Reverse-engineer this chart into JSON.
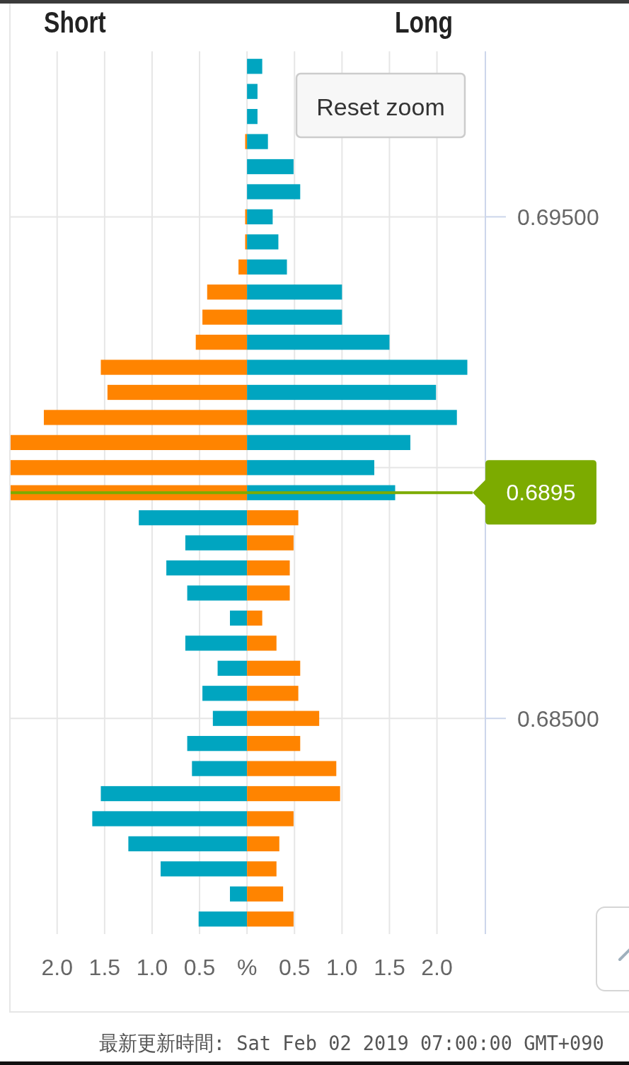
{
  "chart_data": {
    "type": "bar",
    "orientation": "horizontal",
    "stacked": true,
    "annotations": [
      "Short",
      "Long",
      "Reset zoom",
      "最新更新時間: Sat Feb 02 2019 07:00:00 GMT+090"
    ],
    "x": [
      0.698,
      0.6975,
      0.697,
      0.6965,
      0.696,
      0.6955,
      0.695,
      0.6945,
      0.694,
      0.6935,
      0.693,
      0.6925,
      0.692,
      0.6915,
      0.691,
      0.6905,
      0.69,
      0.6895,
      0.689,
      0.6885,
      0.688,
      0.6875,
      0.687,
      0.6865,
      0.686,
      0.6855,
      0.685,
      0.6845,
      0.684,
      0.6835,
      0.683,
      0.6825,
      0.682,
      0.6815,
      0.681
    ],
    "series": [
      {
        "color": "#ff8400",
        "values": [
          null,
          null,
          null,
          -0.02,
          null,
          null,
          -0.02,
          -0.02,
          -0.09,
          -0.42,
          -0.47,
          -0.54,
          -1.54,
          -1.47,
          -2.14,
          -2.49,
          -2.49,
          -2.49,
          null,
          null,
          null,
          null,
          null,
          null,
          null,
          null,
          null,
          null,
          null,
          null,
          null,
          null,
          null,
          null,
          null
        ]
      },
      {
        "color": "#00a5c0",
        "values": [
          0.16,
          0.11,
          0.11,
          0.22,
          0.49,
          0.56,
          0.27,
          0.33,
          0.42,
          1.0,
          1.0,
          1.5,
          2.32,
          1.99,
          2.21,
          1.72,
          1.34,
          1.56,
          null,
          null,
          null,
          null,
          null,
          null,
          null,
          null,
          null,
          null,
          null,
          null,
          null,
          null,
          null,
          null,
          null
        ]
      },
      {
        "color": "#00a5c0",
        "values": [
          null,
          null,
          null,
          null,
          null,
          null,
          null,
          null,
          null,
          null,
          null,
          null,
          null,
          null,
          null,
          null,
          null,
          null,
          -1.14,
          -0.65,
          -0.85,
          -0.63,
          -0.18,
          -0.65,
          -0.31,
          -0.47,
          -0.36,
          -0.63,
          -0.58,
          -1.54,
          -1.63,
          -1.25,
          -0.91,
          -0.18,
          -0.51
        ]
      },
      {
        "color": "#ff8400",
        "values": [
          null,
          null,
          null,
          null,
          null,
          null,
          null,
          null,
          null,
          null,
          null,
          null,
          null,
          null,
          null,
          null,
          null,
          null,
          0.54,
          0.49,
          0.45,
          0.45,
          0.16,
          0.31,
          0.56,
          0.54,
          0.76,
          0.56,
          0.94,
          0.98,
          0.49,
          0.34,
          0.31,
          0.38,
          0.49
        ]
      }
    ],
    "xlim": [
      -2.49,
      2.51
    ],
    "xticks": [
      {
        "value": -2,
        "label": "2.0"
      },
      {
        "value": -1.5,
        "label": "1.5"
      },
      {
        "value": -1,
        "label": "1.0"
      },
      {
        "value": -0.5,
        "label": "0.5"
      },
      {
        "value": 0,
        "label": "%"
      },
      0.5,
      {
        "value": 1,
        "label": "1.0"
      },
      1.5,
      {
        "value": 2,
        "label": "2.0"
      }
    ],
    "ylim": [
      0.6807,
      0.6983
    ],
    "yticks": [
      {
        "value": 0.685,
        "label": "0.68500"
      },
      {
        "value": 0.69,
        "label": null
      },
      {
        "value": 0.695,
        "label": "0.69500"
      }
    ],
    "ref_lines": [
      {
        "axis": "y",
        "value": 0.6895,
        "label": "0.6895",
        "color": "#7cab00"
      }
    ],
    "grid": true
  }
}
